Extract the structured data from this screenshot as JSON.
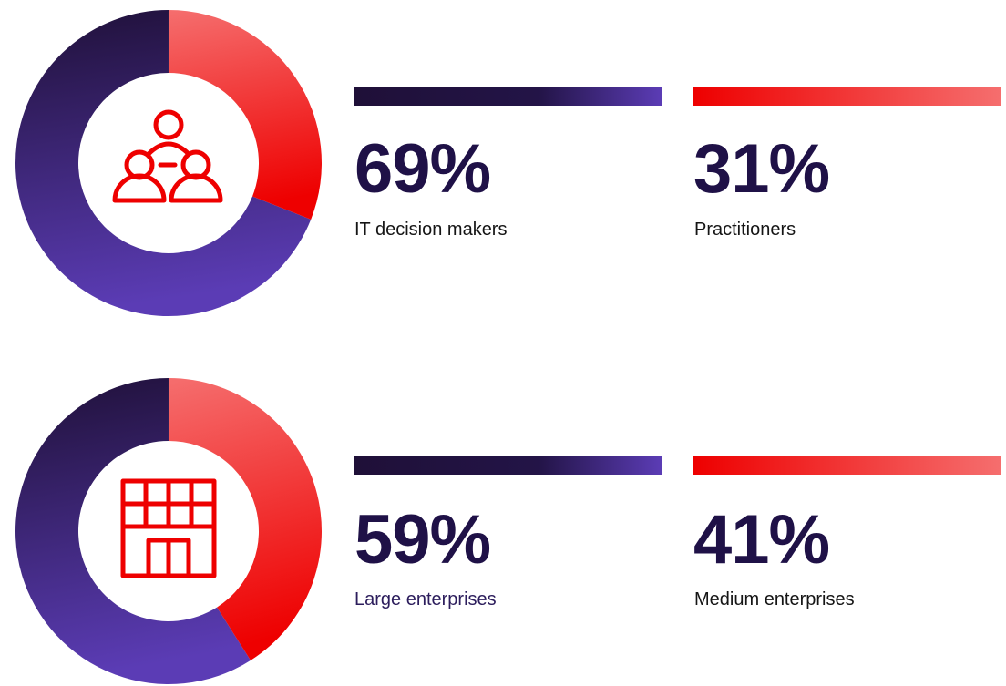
{
  "chart_data": [
    {
      "type": "pie",
      "title": "",
      "icon": "people-network-icon",
      "categories": [
        "IT decision makers",
        "Practitioners"
      ],
      "values": [
        69,
        31
      ],
      "value_labels": [
        "69%",
        "31%"
      ],
      "colors": {
        "IT decision makers": [
          "#1f1038",
          "#5b3cb5"
        ],
        "Practitioners": [
          "#f56e6e",
          "#ee0000"
        ]
      }
    },
    {
      "type": "pie",
      "title": "",
      "icon": "building-icon",
      "categories": [
        "Large enterprises",
        "Medium enterprises"
      ],
      "values": [
        59,
        41
      ],
      "value_labels": [
        "59%",
        "41%"
      ],
      "colors": {
        "Large enterprises": [
          "#1f1038",
          "#5b3cb5"
        ],
        "Medium enterprises": [
          "#f56e6e",
          "#ee0000"
        ]
      }
    }
  ]
}
